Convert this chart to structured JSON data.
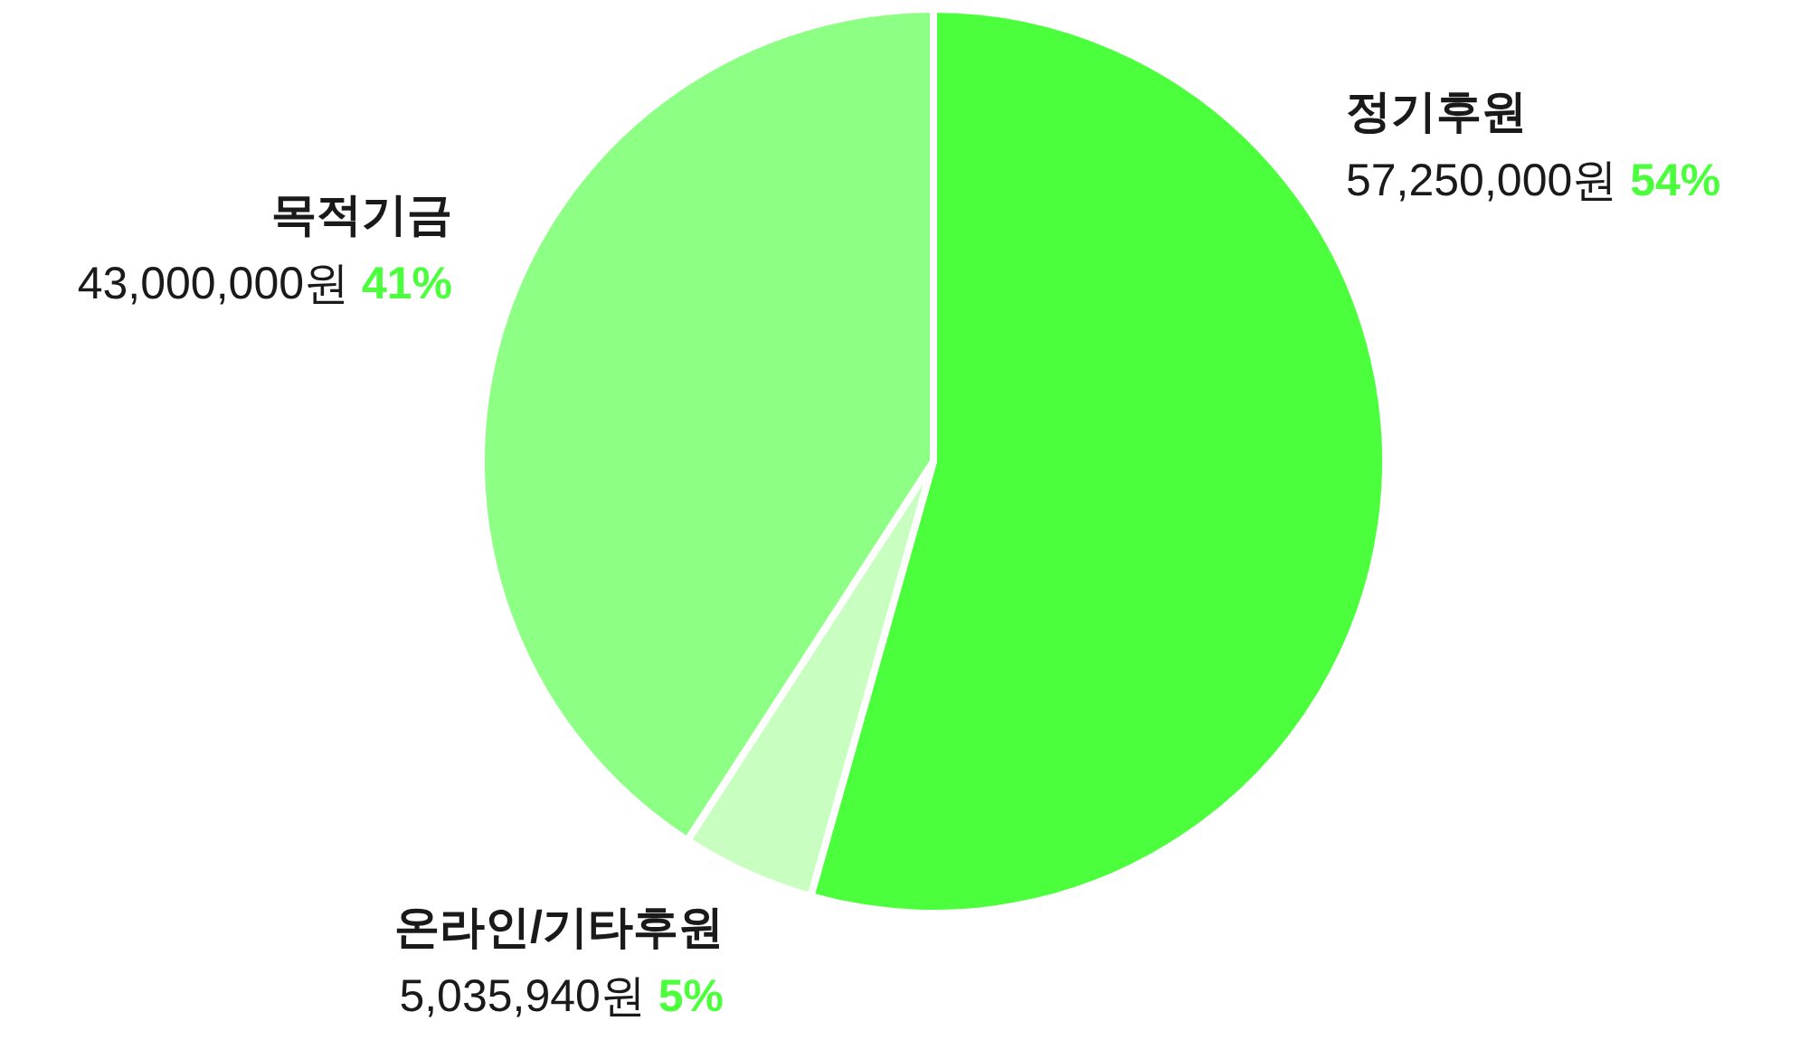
{
  "chart_data": {
    "type": "pie",
    "categories": [
      "정기후원",
      "온라인/기타후원",
      "목적기금"
    ],
    "values": [
      57250000,
      5035940,
      43000000
    ],
    "colors": [
      "#4cff3c",
      "#c8ffc0",
      "#8cff84"
    ],
    "value_labels": [
      "57,250,000원 **54%**",
      "5,035,940원 **5%**",
      "43,000,000원 **41%**"
    ]
  }
}
